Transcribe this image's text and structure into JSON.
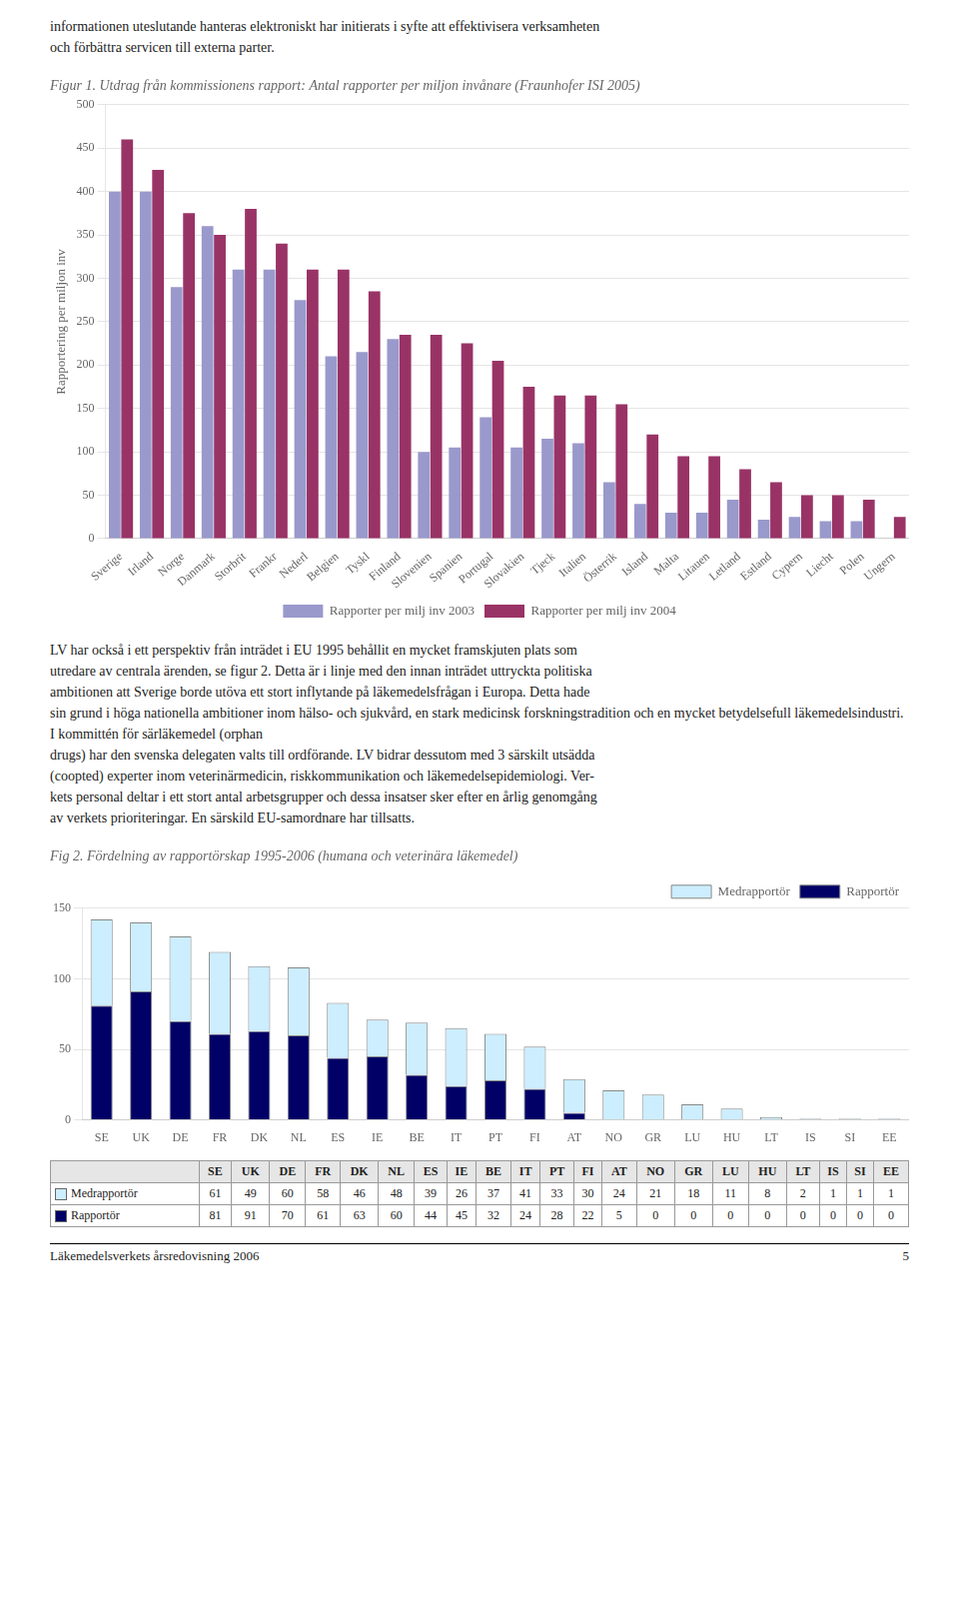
{
  "chart_data": [
    {
      "type": "bar",
      "title": "Figur 1. Utdrag från kommissionens rapport: Antal rapporter per miljon invånare (Fraunhofer ISI 2005)",
      "annotations": [
        "informationen uteslutande hanteras elektroniskt har initierats i syfte att effektivisera verksamheten",
        "och förbättra servicen till externa parter."
      ],
      "categories": [
        "Sverige",
        "Irland",
        "Norge",
        "Danmark",
        "Storbrit",
        "Frankr",
        "Nederl",
        "Belgien",
        "Tyskl",
        "Finland",
        "Slovenien",
        "Spanien",
        "Portugal",
        "Slovakien",
        "Tjeck",
        "Italien",
        "Österrik",
        "Island",
        "Malta",
        "Litauen",
        "Letland",
        "Estland",
        "Cypern",
        "Liecht",
        "Polen",
        "Ungern"
      ],
      "series": [
        {
          "name": "Rapporter per milj inv 2003",
          "color": "#9999cc",
          "values": [
            400,
            400,
            290,
            360,
            310,
            310,
            275,
            210,
            215,
            230,
            100,
            105,
            140,
            105,
            115,
            110,
            65,
            40,
            30,
            30,
            45,
            22,
            25,
            20,
            20,
            null
          ]
        },
        {
          "name": "Rapporter per milj inv 2004",
          "color": "#993366",
          "values": [
            460,
            425,
            375,
            350,
            380,
            340,
            310,
            310,
            285,
            235,
            235,
            225,
            205,
            175,
            165,
            165,
            155,
            120,
            95,
            95,
            80,
            65,
            50,
            50,
            45,
            25
          ]
        }
      ],
      "ylabel": "Rapportering per miljon inv",
      "ylim": [
        0,
        500
      ],
      "yticks": [
        0,
        50,
        100,
        150,
        200,
        250,
        300,
        350,
        400,
        450,
        500
      ],
      "grid": true,
      "legend": "bottom"
    },
    {
      "type": "bar",
      "title": "Fig 2. Fördelning av rapportörskap 1995-2006 (humana och veterinära läkemedel)",
      "annotations": [
        "LV har också i ett perspektiv från inträdet i EU 1995 behållit en mycket framskjuten plats som",
        "utredare av centrala ärenden, se figur 2. Detta är i linje med den innan inträdet uttryckta politiska",
        "ambitionen att Sverige borde utöva ett stort inflytande på läkemedelsfrågan i Europa. Detta hade",
        "sin grund i höga nationella ambitioner inom hälso- och sjukvård, en stark medicinsk forskningstradition och en mycket betydelsefull läkemedelsindustri. I kommittén för särläkemedel (orphan",
        "drugs) har den svenska delegaten valts till ordförande. LV bidrar dessutom med 3 särskilt utsädda",
        "(coopted) experter inom veterinärmedicin, riskkommunikation och läkemedelsepidemiologi. Ver-",
        "kets personal deltar i ett stort antal arbetsgrupper och dessa insatser sker efter en årlig genomgång",
        "av verkets prioriteringar. En särskild EU-samordnare har tillsatts.",
        "Läkemedelsverkets årsredovisning 2006",
        "5"
      ],
      "categories": [
        "SE",
        "UK",
        "DE",
        "FR",
        "DK",
        "NL",
        "ES",
        "IE",
        "BE",
        "IT",
        "PT",
        "FI",
        "AT",
        "NO",
        "GR",
        "LU",
        "HU",
        "LT",
        "IS",
        "SI",
        "EE"
      ],
      "series": [
        {
          "name": "Rapportör",
          "color": "#000066",
          "values": [
            81,
            91,
            70,
            61,
            63,
            60,
            44,
            45,
            32,
            24,
            28,
            22,
            5,
            0,
            0,
            0,
            0,
            0,
            0,
            0,
            0
          ]
        },
        {
          "name": "Medrapportör",
          "color": "#cceeff",
          "values": [
            61,
            49,
            60,
            58,
            46,
            48,
            39,
            26,
            37,
            41,
            33,
            30,
            24,
            21,
            18,
            11,
            8,
            2,
            1,
            1,
            1
          ]
        }
      ],
      "stacked": true,
      "ylim": [
        0,
        150
      ],
      "yticks": [
        0,
        50,
        100,
        150
      ],
      "grid": true,
      "legend": "upper right"
    }
  ]
}
